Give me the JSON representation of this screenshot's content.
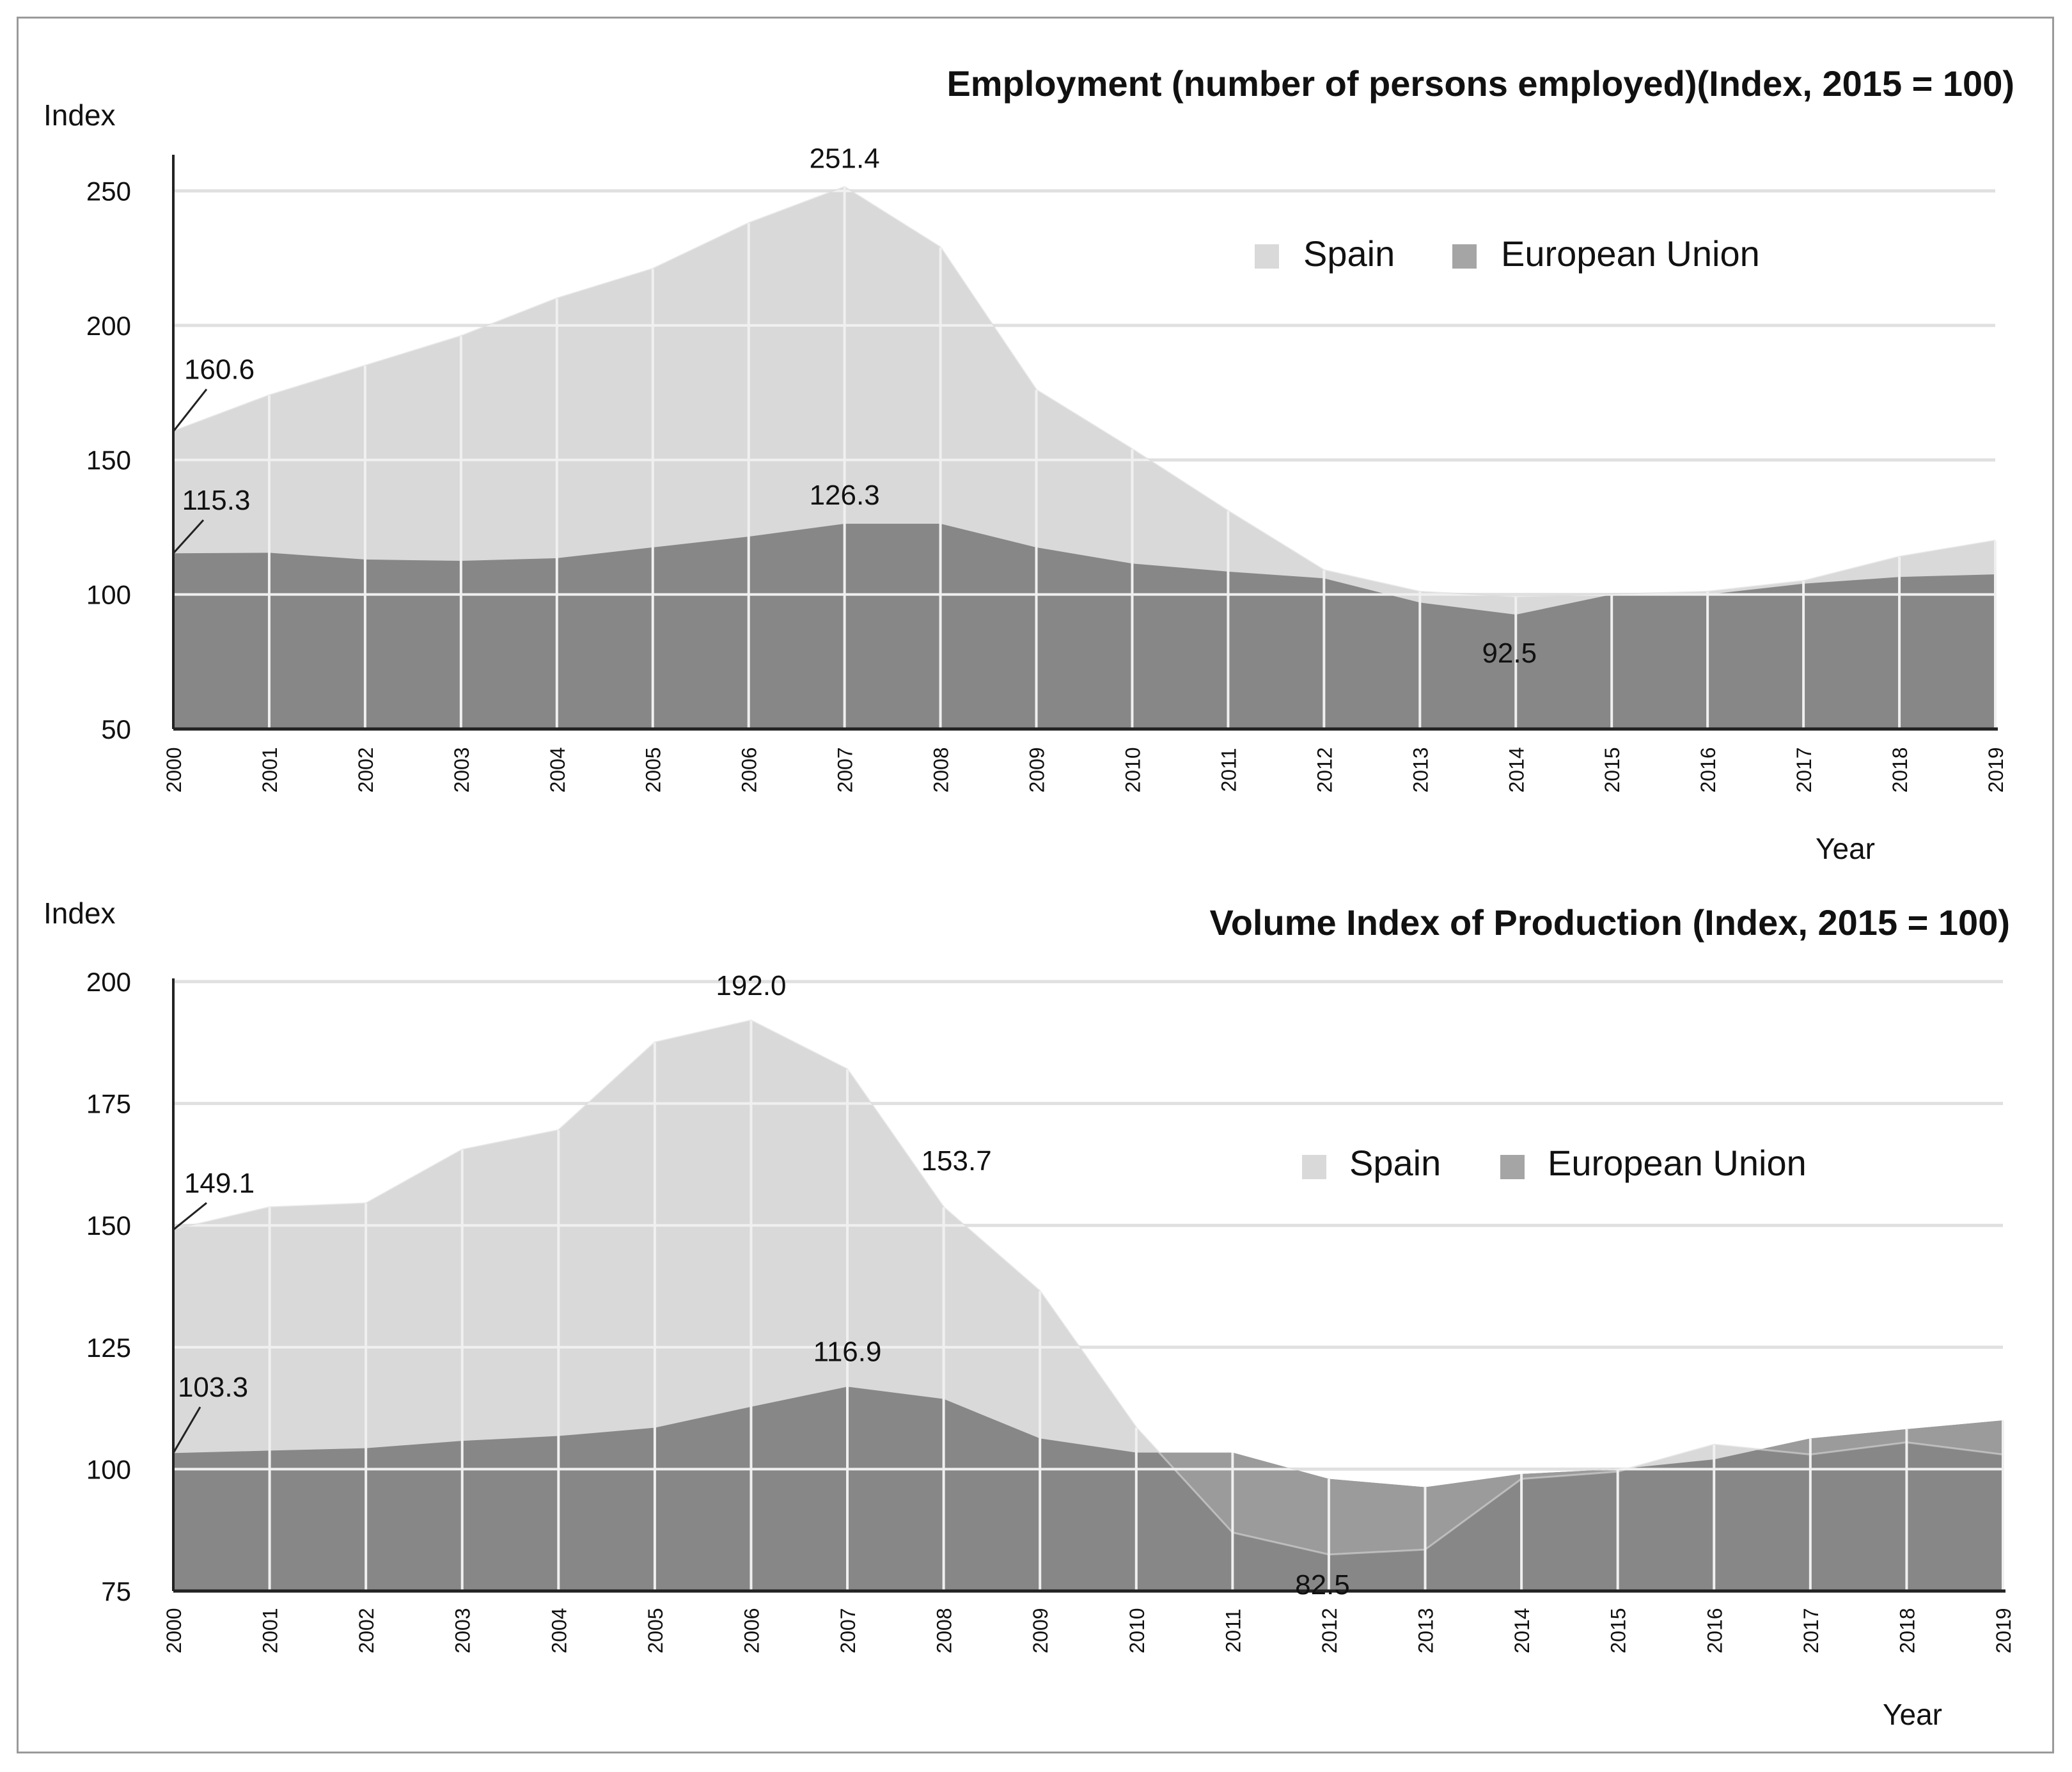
{
  "colors": {
    "spain": "#d9d9d9",
    "eu": "#878787",
    "overlap": "#9b9b9b",
    "grid": "#e0e0e0",
    "inner_grid": "#f0f0f0",
    "axis": "#222222",
    "frame": "#9a9a9a"
  },
  "chart_data": [
    {
      "type": "area",
      "title": "Employment (number of persons employed)(Index, 2015 = 100)",
      "ylabel": "Index",
      "xlabel": "Year",
      "ylim": [
        50,
        262
      ],
      "yticks": [
        50,
        100,
        150,
        200,
        250
      ],
      "categories": [
        "2000",
        "2001",
        "2002",
        "2003",
        "2004",
        "2005",
        "2006",
        "2007",
        "2008",
        "2009",
        "2010",
        "2011",
        "2012",
        "2013",
        "2014",
        "2015",
        "2016",
        "2017",
        "2018",
        "2019"
      ],
      "legend": {
        "position": "top-right",
        "entries": [
          "Spain",
          "European Union"
        ]
      },
      "series": [
        {
          "name": "Spain",
          "values": [
            160.6,
            174,
            185,
            196,
            210,
            221,
            238,
            251.4,
            229,
            176,
            154,
            131,
            109,
            101,
            99,
            100,
            101,
            105,
            114,
            120
          ]
        },
        {
          "name": "European Union",
          "values": [
            115.3,
            115.5,
            113,
            112.5,
            113.5,
            117.5,
            121.5,
            126.3,
            126.3,
            117.5,
            111.5,
            108.5,
            106,
            97,
            92.5,
            100,
            100,
            104,
            106.5,
            107.5
          ]
        }
      ],
      "annotations": [
        {
          "text": "251.4",
          "x": "2007",
          "y": 251.4
        },
        {
          "text": "160.6",
          "x": "2000",
          "y": 160.6
        },
        {
          "text": "115.3",
          "x": "2000",
          "y": 115.3
        },
        {
          "text": "126.3",
          "x": "2007",
          "y": 126.3
        },
        {
          "text": "92.5",
          "x": "2014",
          "y": 92.5
        }
      ]
    },
    {
      "type": "area",
      "title": "Volume Index of Production (Index, 2015 = 100)",
      "ylabel": "Index",
      "xlabel": "Year",
      "ylim": [
        75,
        200
      ],
      "yticks": [
        75,
        100,
        125,
        150,
        175,
        200
      ],
      "categories": [
        "2000",
        "2001",
        "2002",
        "2003",
        "2004",
        "2005",
        "2006",
        "2007",
        "2008",
        "2009",
        "2010",
        "2011",
        "2012",
        "2013",
        "2014",
        "2015",
        "2016",
        "2017",
        "2018",
        "2019"
      ],
      "legend": {
        "position": "top-right",
        "entries": [
          "Spain",
          "European Union"
        ]
      },
      "series": [
        {
          "name": "Spain",
          "values": [
            149.1,
            153.7,
            154.5,
            165.5,
            169.5,
            187.5,
            192.0,
            182,
            153.7,
            136.5,
            108.5,
            87,
            82.5,
            83.5,
            98,
            99.5,
            105,
            103,
            105.5,
            103
          ]
        },
        {
          "name": "European Union",
          "values": [
            103.3,
            103.8,
            104.3,
            105.8,
            106.8,
            108.5,
            112.8,
            116.9,
            114.4,
            106.3,
            103.4,
            103.4,
            98,
            96.3,
            99,
            100,
            102,
            106.3,
            108.2,
            110
          ]
        }
      ],
      "annotations": [
        {
          "text": "192.0",
          "x": "2006",
          "y": 192.0
        },
        {
          "text": "149.1",
          "x": "2000",
          "y": 149.1
        },
        {
          "text": "153.7",
          "x": "2008",
          "y": 153.7
        },
        {
          "text": "103.3",
          "x": "2000",
          "y": 103.3
        },
        {
          "text": "116.9",
          "x": "2007",
          "y": 116.9
        },
        {
          "text": "82.5",
          "x": "2012",
          "y": 82.5
        }
      ]
    }
  ]
}
